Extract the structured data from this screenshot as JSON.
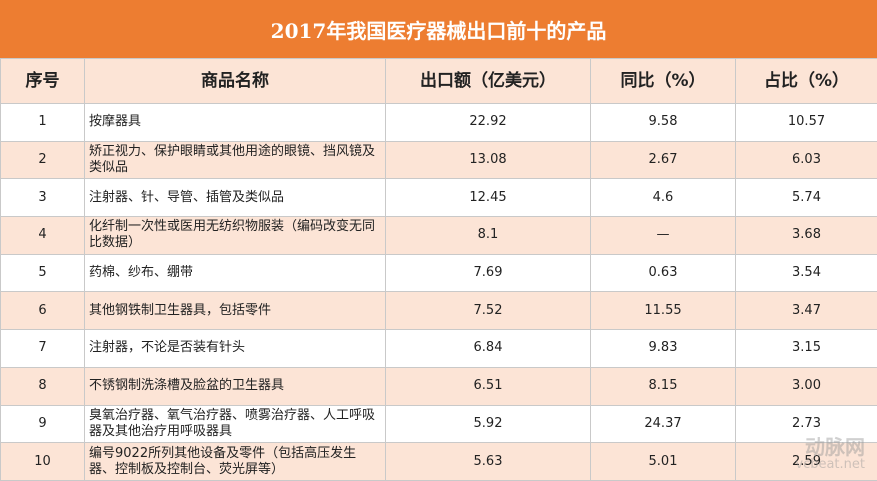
{
  "title": "2017年我国医疗器械出口前十的产品",
  "table": {
    "header": [
      "序号",
      "商品名称",
      "出口额（亿美元）",
      "同比（%）",
      "占比（%）"
    ],
    "rows": [
      [
        "1",
        "按摩器具",
        "22.92",
        "9.58",
        "10.57"
      ],
      [
        "2",
        "矫正视力、保护眼睛或其他用途的眼镜、挡风镜及类似品",
        "13.08",
        "2.67",
        "6.03"
      ],
      [
        "3",
        "注射器、针、导管、插管及类似品",
        "12.45",
        "4.6",
        "5.74"
      ],
      [
        "4",
        "化纤制一次性或医用无纺织物服装（编码改变无同比数据）",
        "8.1",
        "—",
        "3.68"
      ],
      [
        "5",
        "药棉、纱布、绷带",
        "7.69",
        "0.63",
        "3.54"
      ],
      [
        "6",
        "其他钢铁制卫生器具，包括零件",
        "7.52",
        "11.55",
        "3.47"
      ],
      [
        "7",
        "注射器，不论是否装有针头",
        "6.84",
        "9.83",
        "3.15"
      ],
      [
        "8",
        "不锈钢制洗涤槽及脸盆的卫生器具",
        "6.51",
        "8.15",
        "3.00"
      ],
      [
        "9",
        "臭氧治疗器、氧气治疗器、喷雾治疗器、人工呼吸器及其他治疗用呼吸器具",
        "5.92",
        "24.37",
        "2.73"
      ],
      [
        "10",
        "编号9022所列其他设备及零件（包括高压发生器、控制板及控制台、荧光屏等）",
        "5.63",
        "5.01",
        "2.59"
      ]
    ]
  },
  "watermark": [
    "动脉网",
    "vcbeat.net"
  ]
}
